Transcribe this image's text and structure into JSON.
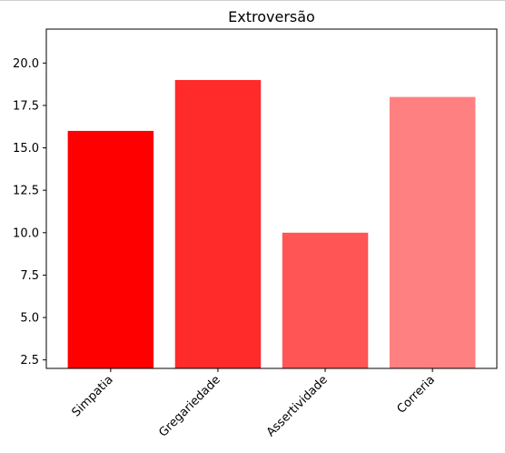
{
  "chart_data": {
    "type": "bar",
    "title": "Extroversão",
    "xlabel": "",
    "ylabel": "",
    "categories": [
      "Simpatia",
      "Gregariedade",
      "Assertividade",
      "Correria"
    ],
    "values": [
      16,
      19,
      10,
      18
    ],
    "colors": [
      "#ff0000",
      "#ff2a2a",
      "#ff5555",
      "#ff8080"
    ],
    "ylim": [
      2,
      22
    ],
    "yticks": [
      2.5,
      5.0,
      7.5,
      10.0,
      12.5,
      15.0,
      17.5,
      20.0
    ],
    "ytick_labels": [
      "2.5",
      "5.0",
      "7.5",
      "10.0",
      "12.5",
      "15.0",
      "17.5",
      "20.0"
    ],
    "grid": false,
    "xtick_rotation": 45
  }
}
